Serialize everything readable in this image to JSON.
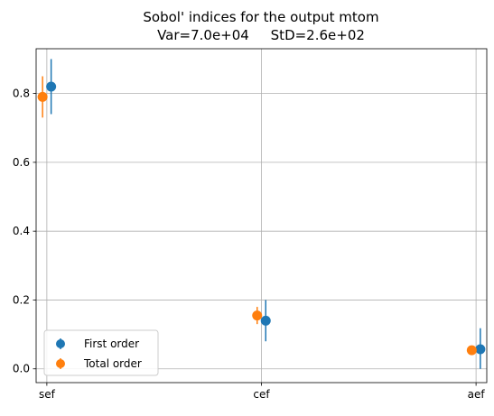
{
  "chart_data": {
    "type": "scatter",
    "title_lines": [
      "Sobol' indices for the output mtom",
      "Var=7.0e+04     StD=2.6e+02"
    ],
    "xlabel": "",
    "ylabel": "",
    "categories": [
      "sef",
      "cef",
      "aef"
    ],
    "y_ticks": [
      "0.0",
      "0.2",
      "0.4",
      "0.6",
      "0.8"
    ],
    "ylim": [
      -0.04,
      0.93
    ],
    "grid": true,
    "legend_position": "lower left",
    "series": [
      {
        "name": "First order",
        "color": "#1f77b4",
        "offset": 0.02,
        "values": [
          0.82,
          0.14,
          0.057
        ],
        "lower": [
          0.74,
          0.08,
          0.0
        ],
        "upper": [
          0.9,
          0.2,
          0.118
        ]
      },
      {
        "name": "Total order",
        "color": "#ff7f0e",
        "offset": -0.02,
        "values": [
          0.79,
          0.155,
          0.054
        ],
        "lower": [
          0.73,
          0.13,
          0.045
        ],
        "upper": [
          0.85,
          0.18,
          0.063
        ]
      }
    ]
  }
}
